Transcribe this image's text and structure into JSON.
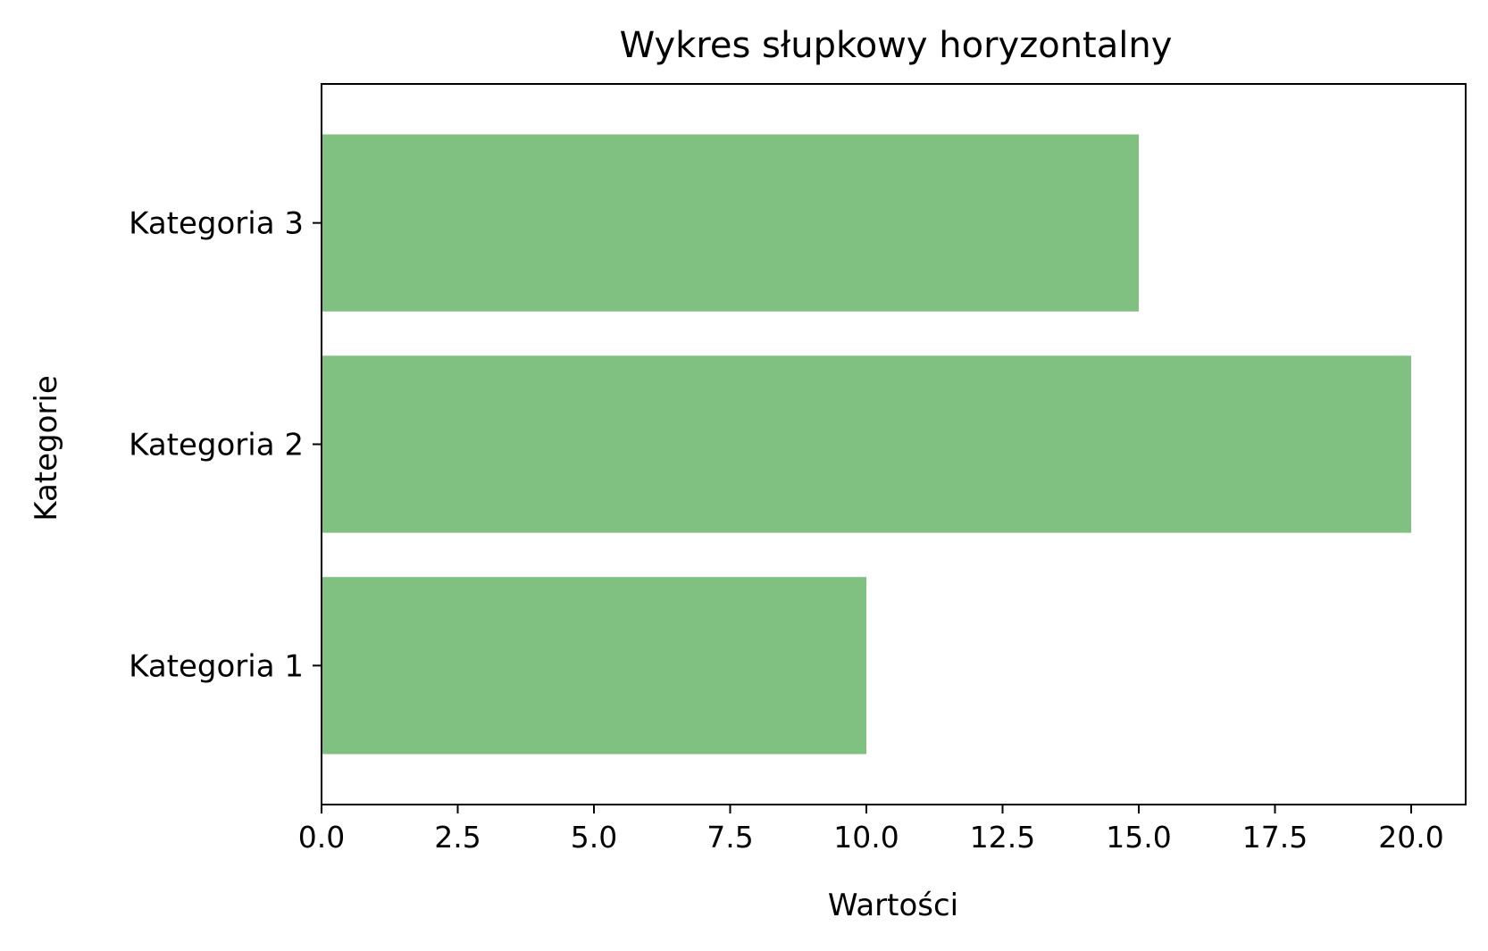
{
  "chart_data": {
    "type": "bar",
    "orientation": "horizontal",
    "title": "Wykres słupkowy horyzontalny",
    "xlabel": "Wartości",
    "ylabel": "Kategorie",
    "categories": [
      "Kategoria 1",
      "Kategoria 2",
      "Kategoria 3"
    ],
    "values": [
      10,
      20,
      15
    ],
    "xlim": [
      0,
      21
    ],
    "xticks": [
      "0.0",
      "2.5",
      "5.0",
      "7.5",
      "10.0",
      "12.5",
      "15.0",
      "17.5",
      "20.0"
    ],
    "grid": false,
    "legend": "none",
    "bar_color": "#80c080"
  }
}
